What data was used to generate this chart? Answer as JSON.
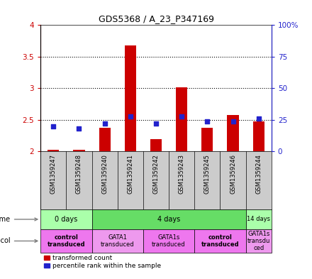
{
  "title": "GDS5368 / A_23_P347169",
  "samples": [
    "GSM1359247",
    "GSM1359248",
    "GSM1359240",
    "GSM1359241",
    "GSM1359242",
    "GSM1359243",
    "GSM1359245",
    "GSM1359246",
    "GSM1359244"
  ],
  "bar_bottom": 2.0,
  "transformed_counts": [
    2.03,
    2.03,
    2.38,
    3.68,
    2.2,
    3.02,
    2.38,
    2.58,
    2.48
  ],
  "percentile_ranks": [
    20,
    18,
    22,
    28,
    22,
    28,
    24,
    24,
    26
  ],
  "bar_color": "#cc0000",
  "dot_color": "#2222cc",
  "ylim_left": [
    2.0,
    4.0
  ],
  "ylim_right": [
    0,
    100
  ],
  "yticks_left": [
    2.0,
    2.5,
    3.0,
    3.5,
    4.0
  ],
  "ytick_labels_left": [
    "2",
    "2.5",
    "3",
    "3.5",
    "4"
  ],
  "yticks_right": [
    0,
    25,
    50,
    75,
    100
  ],
  "ytick_labels_right": [
    "0",
    "25",
    "50",
    "75",
    "100%"
  ],
  "time_groups": [
    {
      "label": "0 days",
      "start": 0,
      "end": 2,
      "color": "#aaffaa"
    },
    {
      "label": "4 days",
      "start": 2,
      "end": 8,
      "color": "#66dd66"
    },
    {
      "label": "14 days",
      "start": 8,
      "end": 9,
      "color": "#aaffaa"
    }
  ],
  "protocol_groups": [
    {
      "label": "control\ntransduced",
      "start": 0,
      "end": 2,
      "color": "#ee77ee",
      "bold": true
    },
    {
      "label": "GATA1\ntransduced",
      "start": 2,
      "end": 4,
      "color": "#ee99ee",
      "bold": false
    },
    {
      "label": "GATA1s\ntransduced",
      "start": 4,
      "end": 6,
      "color": "#ee77ee",
      "bold": false
    },
    {
      "label": "control\ntransduced",
      "start": 6,
      "end": 8,
      "color": "#ee77ee",
      "bold": true
    },
    {
      "label": "GATA1s\ntransdu\nced",
      "start": 8,
      "end": 9,
      "color": "#ee99ee",
      "bold": false
    }
  ],
  "bg_color": "#ffffff",
  "left_axis_color": "#cc0000",
  "right_axis_color": "#2222cc",
  "sample_bg": "#cccccc"
}
